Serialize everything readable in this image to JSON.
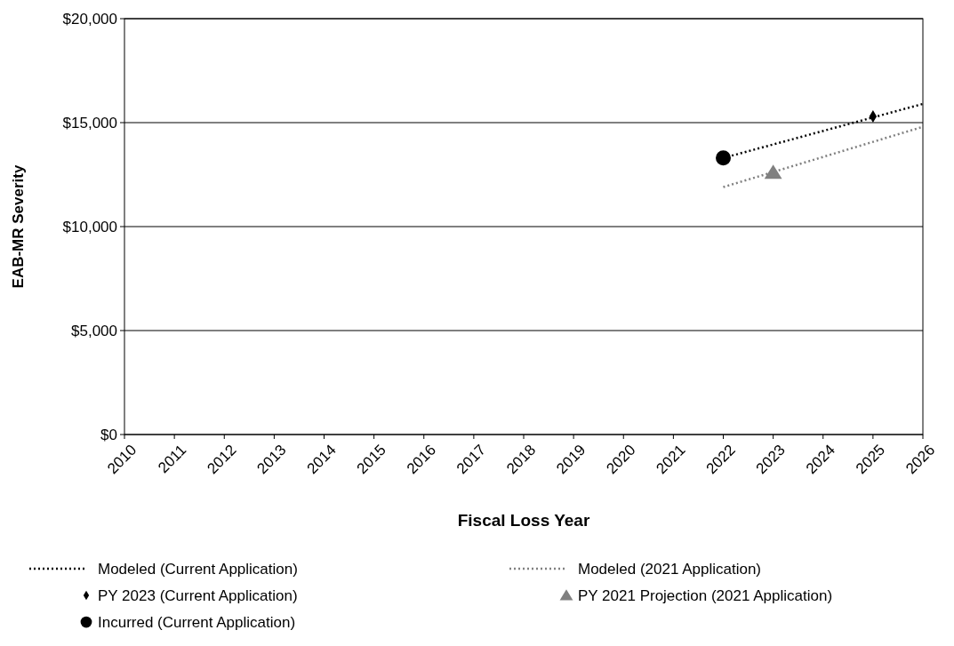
{
  "chart_data": {
    "type": "line",
    "xlabel": "Fiscal Loss Year",
    "ylabel": "EAB-MR Severity",
    "xlim": [
      2010,
      2026
    ],
    "xticks": [
      2010,
      2011,
      2012,
      2013,
      2014,
      2015,
      2016,
      2017,
      2018,
      2019,
      2020,
      2021,
      2022,
      2023,
      2024,
      2025,
      2026
    ],
    "ylim": [
      0,
      20000
    ],
    "yticks": [
      {
        "value": 0,
        "label": "$0"
      },
      {
        "value": 5000,
        "label": "$5,000"
      },
      {
        "value": 10000,
        "label": "$10,000"
      },
      {
        "value": 15000,
        "label": "$15,000"
      },
      {
        "value": 20000,
        "label": "$20,000"
      }
    ],
    "grid": "y",
    "legend": "bottom",
    "series": [
      {
        "name": "Modeled (Current Application)",
        "color": "#000000",
        "line_style": "dotted",
        "marker": "none",
        "x": [
          2022,
          2026
        ],
        "values": [
          13300,
          15900
        ]
      },
      {
        "name": "Modeled (2021 Application)",
        "color": "#808080",
        "line_style": "dotted",
        "marker": "none",
        "x": [
          2022,
          2026
        ],
        "values": [
          11900,
          14800
        ]
      },
      {
        "name": "PY 2023 (Current Application)",
        "type": "scatter",
        "color": "#000000",
        "marker": "diamond",
        "x": [
          2025
        ],
        "values": [
          15300
        ]
      },
      {
        "name": "PY 2021 Projection (2021 Application)",
        "type": "scatter",
        "color": "#808080",
        "marker": "triangle",
        "x": [
          2023
        ],
        "values": [
          12600
        ]
      },
      {
        "name": "Incurred (Current Application)",
        "type": "scatter",
        "color": "#000000",
        "marker": "circle",
        "x": [
          2022
        ],
        "values": [
          13300
        ]
      }
    ]
  }
}
